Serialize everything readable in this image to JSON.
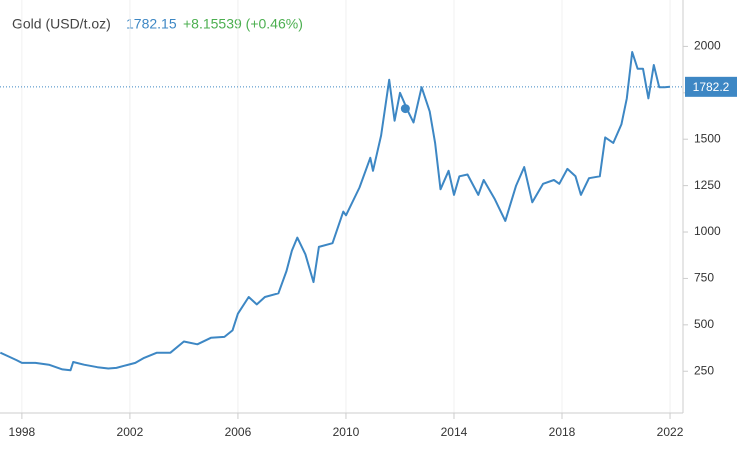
{
  "chart_data": {
    "type": "line",
    "title": "Gold (USD/t.oz)",
    "price": "1782.15",
    "change": "+8.15539 (+0.46%)",
    "last_value": 1782.2,
    "highlight": {
      "x": 2012.2,
      "y": 1665
    },
    "series": [
      {
        "name": "Gold",
        "color": "#3d87c4",
        "x": [
          1997.2,
          1997.5,
          1997.8,
          1998.0,
          1998.5,
          1999.0,
          1999.5,
          1999.8,
          1999.9,
          2000.3,
          2000.8,
          2001.2,
          2001.5,
          2001.8,
          2002.2,
          2002.5,
          2003.0,
          2003.5,
          2004.0,
          2004.5,
          2005.0,
          2005.5,
          2005.8,
          2006.0,
          2006.4,
          2006.7,
          2007.0,
          2007.5,
          2007.8,
          2008.0,
          2008.2,
          2008.5,
          2008.8,
          2009.0,
          2009.5,
          2009.9,
          2010.0,
          2010.5,
          2010.9,
          2011.0,
          2011.3,
          2011.6,
          2011.8,
          2012.0,
          2012.3,
          2012.5,
          2012.8,
          2013.1,
          2013.3,
          2013.5,
          2013.8,
          2014.0,
          2014.2,
          2014.5,
          2014.9,
          2015.1,
          2015.5,
          2015.9,
          2016.3,
          2016.6,
          2016.9,
          2017.3,
          2017.7,
          2017.9,
          2018.2,
          2018.5,
          2018.7,
          2019.0,
          2019.4,
          2019.6,
          2019.9,
          2020.2,
          2020.4,
          2020.6,
          2020.8,
          2021.0,
          2021.2,
          2021.4,
          2021.6,
          2021.8,
          2022.0
        ],
        "values": [
          350,
          330,
          310,
          295,
          295,
          285,
          260,
          255,
          300,
          285,
          272,
          265,
          268,
          280,
          295,
          320,
          350,
          350,
          410,
          395,
          430,
          435,
          470,
          560,
          650,
          610,
          650,
          670,
          790,
          900,
          970,
          880,
          730,
          920,
          940,
          1110,
          1090,
          1240,
          1400,
          1330,
          1520,
          1820,
          1600,
          1750,
          1650,
          1590,
          1780,
          1650,
          1480,
          1230,
          1330,
          1200,
          1300,
          1310,
          1200,
          1280,
          1180,
          1060,
          1250,
          1350,
          1160,
          1260,
          1280,
          1260,
          1340,
          1300,
          1200,
          1290,
          1300,
          1510,
          1480,
          1580,
          1720,
          1970,
          1880,
          1880,
          1720,
          1900,
          1780,
          1780,
          1782.15
        ]
      }
    ],
    "xlim": [
      1997.19,
      2022.48
    ],
    "xticks": [
      1998,
      2002,
      2006,
      2010,
      2014,
      2018,
      2022
    ],
    "ylim": [
      25,
      2250
    ],
    "yticks": [
      250,
      500,
      750,
      1000,
      1250,
      1500,
      1750,
      2000
    ],
    "grid": true
  }
}
